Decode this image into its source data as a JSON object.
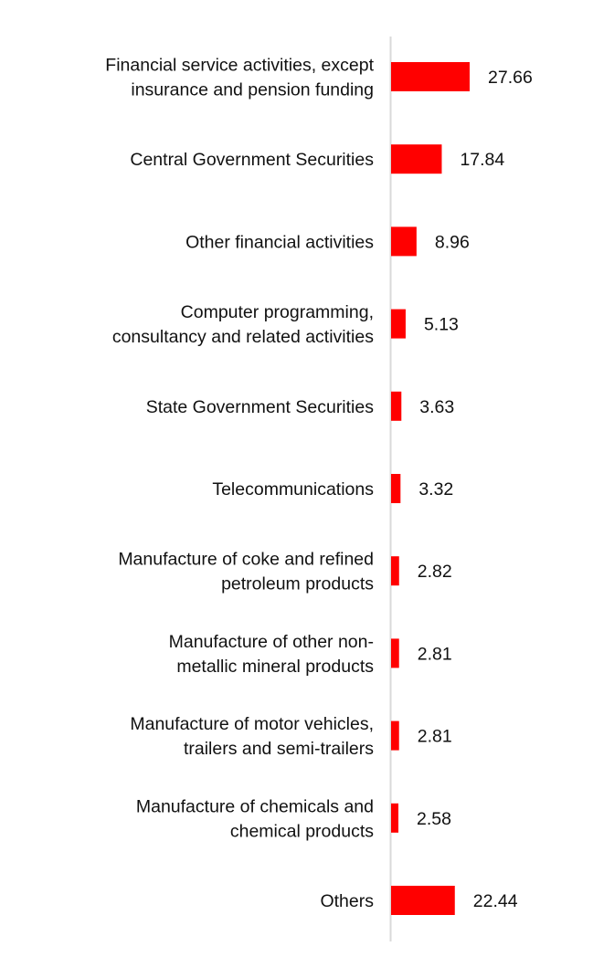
{
  "chart_data": {
    "type": "bar",
    "orientation": "horizontal",
    "title": "",
    "xlabel": "",
    "ylabel": "",
    "categories": [
      [
        "Financial service activities, except",
        "insurance and pension funding"
      ],
      [
        "Central Government Securities"
      ],
      [
        "Other financial activities"
      ],
      [
        "Computer programming,",
        "consultancy and related activities"
      ],
      [
        "State Government Securities"
      ],
      [
        "Telecommunications"
      ],
      [
        "Manufacture of coke and refined",
        "petroleum products"
      ],
      [
        "Manufacture of other non-",
        "metallic mineral products"
      ],
      [
        "Manufacture of motor vehicles,",
        "trailers and semi-trailers"
      ],
      [
        "Manufacture of chemicals and",
        "chemical products"
      ],
      [
        "Others"
      ]
    ],
    "values": [
      27.66,
      17.84,
      8.96,
      5.13,
      3.63,
      3.32,
      2.82,
      2.81,
      2.81,
      2.58,
      22.44
    ],
    "value_labels": [
      "27.66",
      "17.84",
      "8.96",
      "5.13",
      "3.63",
      "3.32",
      "2.82",
      "2.81",
      "2.81",
      "2.58",
      "22.44"
    ],
    "xlim": [
      0,
      28
    ],
    "grid": false,
    "legend": "none",
    "bar_color": "#ff0000",
    "axis_color": "#d9d9d9"
  }
}
